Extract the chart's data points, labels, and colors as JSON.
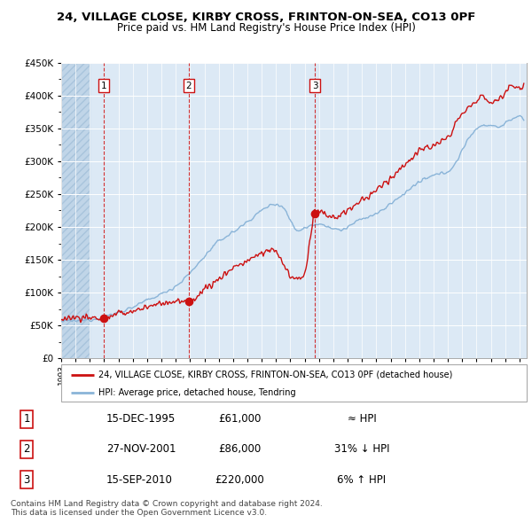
{
  "title1": "24, VILLAGE CLOSE, KIRBY CROSS, FRINTON-ON-SEA, CO13 0PF",
  "title2": "Price paid vs. HM Land Registry's House Price Index (HPI)",
  "legend_line1": "24, VILLAGE CLOSE, KIRBY CROSS, FRINTON-ON-SEA, CO13 0PF (detached house)",
  "legend_line2": "HPI: Average price, detached house, Tendring",
  "sales": [
    {
      "num": 1,
      "date_str": "15-DEC-1995",
      "date_x": 1995.96,
      "price": 61000,
      "hpi_rel": "≈ HPI"
    },
    {
      "num": 2,
      "date_str": "27-NOV-2001",
      "date_x": 2001.91,
      "price": 86000,
      "hpi_rel": "31% ↓ HPI"
    },
    {
      "num": 3,
      "date_str": "15-SEP-2010",
      "date_x": 2010.71,
      "price": 220000,
      "hpi_rel": "6% ↑ HPI"
    }
  ],
  "hpi_color": "#8ab4d8",
  "price_color": "#cc1111",
  "sale_dot_color": "#cc1111",
  "sale_vline_color": "#cc1111",
  "background_color": "#dce9f5",
  "hatch_color": "#c0d5e8",
  "grid_color": "#ffffff",
  "ylim": [
    0,
    450000
  ],
  "xlim_start": 1993.0,
  "xlim_end": 2025.5,
  "footer": "Contains HM Land Registry data © Crown copyright and database right 2024.\nThis data is licensed under the Open Government Licence v3.0."
}
